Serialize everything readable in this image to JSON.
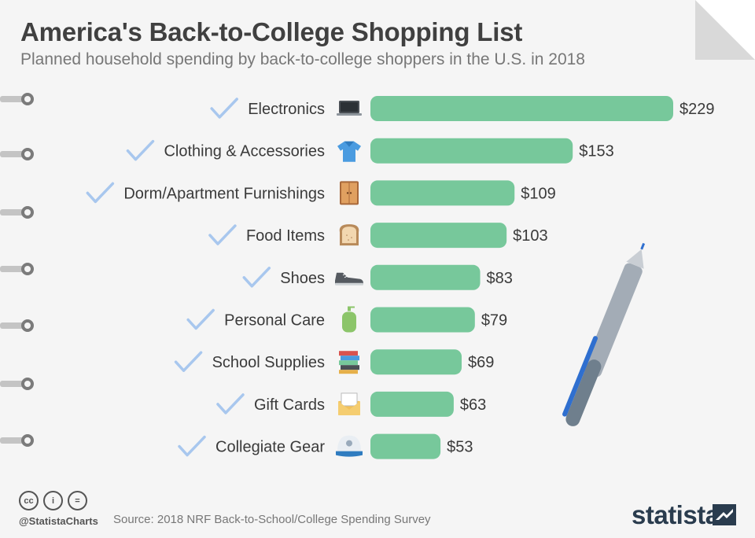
{
  "header": {
    "title": "America's Back-to-College Shopping List",
    "subtitle": "Planned household spending by back-to-college shoppers in the U.S. in 2018"
  },
  "colors": {
    "bar": "#77c89b",
    "check": "#a8c7ee",
    "text": "#3a3a3a",
    "title": "#404040",
    "brand": "#2a3c4e"
  },
  "chart_data": {
    "type": "bar",
    "orientation": "horizontal",
    "title": "America's Back-to-College Shopping List",
    "subtitle": "Planned household spending by back-to-college shoppers in the U.S. in 2018",
    "unit": "$",
    "xlim": [
      0,
      229
    ],
    "grid": false,
    "categories": [
      "Electronics",
      "Clothing & Accessories",
      "Dorm/Apartment Furnishings",
      "Food Items",
      "Shoes",
      "Personal Care",
      "School Supplies",
      "Gift Cards",
      "Collegiate Gear"
    ],
    "values": [
      229,
      153,
      109,
      103,
      83,
      79,
      69,
      63,
      53
    ],
    "value_labels": [
      "$229",
      "$153",
      "$109",
      "$103",
      "$83",
      "$79",
      "$69",
      "$63",
      "$53"
    ],
    "icons": [
      "laptop-icon",
      "shirt-icon",
      "wardrobe-icon",
      "bread-icon",
      "sneaker-icon",
      "soap-icon",
      "books-icon",
      "gift-card-icon",
      "cap-icon"
    ]
  },
  "footer": {
    "license_icons": [
      "cc-icon",
      "attribution-icon",
      "no-derivatives-icon"
    ],
    "license_glyphs": [
      "cc",
      "i",
      "="
    ],
    "handle": "@StatistaCharts",
    "source": "Source: 2018 NRF Back-to-School/College Spending Survey",
    "brand": "statista"
  }
}
